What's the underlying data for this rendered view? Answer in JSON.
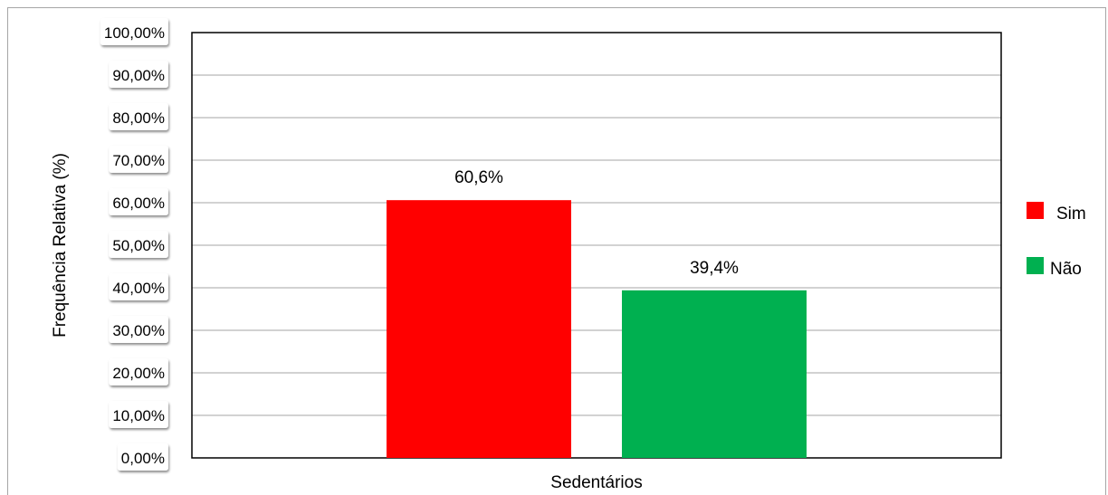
{
  "chart_data": {
    "type": "bar",
    "categories": [
      "Sedentários"
    ],
    "series": [
      {
        "name": "Sim",
        "values": [
          60.6
        ],
        "label": "60,6%",
        "color": "#ff0000"
      },
      {
        "name": "Não",
        "values": [
          39.4
        ],
        "label": "39,4%",
        "color": "#00b050"
      }
    ],
    "ylabel": "Frequência Relativa  (%)",
    "xlabel": "",
    "ylim": [
      0,
      100
    ],
    "yticks": [
      0,
      10,
      20,
      30,
      40,
      50,
      60,
      70,
      80,
      90,
      100
    ],
    "ytick_labels": [
      "0,00%",
      "10,00%",
      "20,00%",
      "30,00%",
      "40,00%",
      "50,00%",
      "60,00%",
      "70,00%",
      "80,00%",
      "90,00%",
      "100,00%"
    ],
    "grid": true,
    "legend": "right"
  }
}
